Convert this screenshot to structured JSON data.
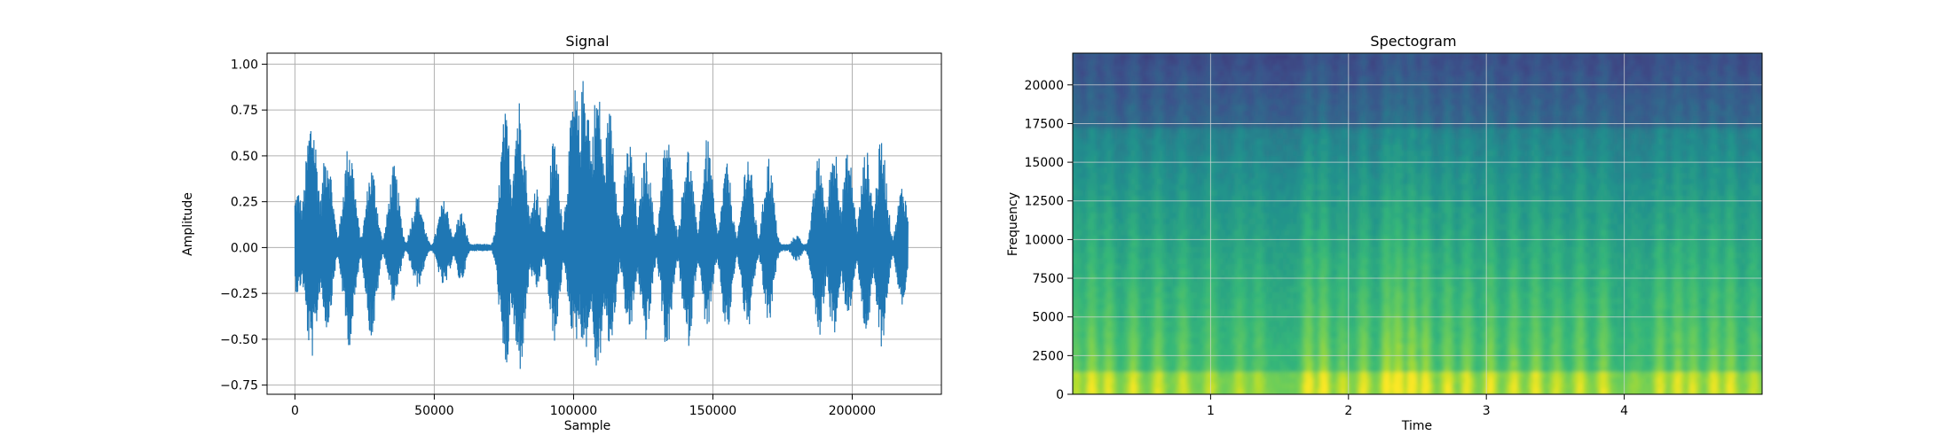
{
  "chart_data": [
    {
      "type": "line",
      "title": "Signal",
      "xlabel": "Sample",
      "ylabel": "Amplitude",
      "xlim": [
        -10000,
        232000
      ],
      "ylim": [
        -0.8,
        1.06
      ],
      "xticks": [
        0,
        50000,
        100000,
        150000,
        200000
      ],
      "xtick_labels": [
        "0",
        "50000",
        "100000",
        "150000",
        "200000"
      ],
      "yticks": [
        -0.75,
        -0.5,
        -0.25,
        0.0,
        0.25,
        0.5,
        0.75,
        1.0
      ],
      "ytick_labels": [
        "−0.75",
        "−0.50",
        "−0.25",
        "0.00",
        "0.25",
        "0.50",
        "0.75",
        "1.00"
      ],
      "grid": true,
      "color": "#1f77b4",
      "sample_count": 220000,
      "syllables": [
        {
          "center": 1000,
          "width": 2800,
          "top": 0.32,
          "bottom": -0.26
        },
        {
          "center": 6000,
          "width": 3500,
          "top": 0.74,
          "bottom": -0.61
        },
        {
          "center": 11500,
          "width": 3000,
          "top": 0.56,
          "bottom": -0.45
        },
        {
          "center": 19500,
          "width": 3200,
          "top": 0.59,
          "bottom": -0.54
        },
        {
          "center": 27500,
          "width": 3000,
          "top": 0.45,
          "bottom": -0.5
        },
        {
          "center": 35500,
          "width": 3000,
          "top": 0.45,
          "bottom": -0.31
        },
        {
          "center": 44000,
          "width": 3200,
          "top": 0.29,
          "bottom": -0.22
        },
        {
          "center": 53500,
          "width": 3200,
          "top": 0.26,
          "bottom": -0.22
        },
        {
          "center": 59500,
          "width": 2600,
          "top": 0.2,
          "bottom": -0.19
        },
        {
          "center": 75500,
          "width": 3000,
          "top": 0.74,
          "bottom": -0.7
        },
        {
          "center": 80500,
          "width": 3500,
          "top": 0.83,
          "bottom": -0.69
        },
        {
          "center": 86500,
          "width": 2600,
          "top": 0.35,
          "bottom": -0.25
        },
        {
          "center": 93000,
          "width": 3000,
          "top": 0.6,
          "bottom": -0.52
        },
        {
          "center": 100500,
          "width": 3600,
          "top": 0.88,
          "bottom": -0.53
        },
        {
          "center": 104000,
          "width": 3500,
          "top": 0.97,
          "bottom": -0.57
        },
        {
          "center": 108500,
          "width": 3200,
          "top": 0.9,
          "bottom": -0.7
        },
        {
          "center": 113000,
          "width": 3200,
          "top": 0.76,
          "bottom": -0.56
        },
        {
          "center": 120000,
          "width": 3000,
          "top": 0.59,
          "bottom": -0.48
        },
        {
          "center": 126000,
          "width": 3000,
          "top": 0.53,
          "bottom": -0.51
        },
        {
          "center": 133500,
          "width": 3000,
          "top": 0.64,
          "bottom": -0.57
        },
        {
          "center": 141000,
          "width": 3000,
          "top": 0.56,
          "bottom": -0.55
        },
        {
          "center": 148000,
          "width": 3000,
          "top": 0.6,
          "bottom": -0.45
        },
        {
          "center": 155000,
          "width": 2800,
          "top": 0.46,
          "bottom": -0.49
        },
        {
          "center": 162500,
          "width": 3000,
          "top": 0.53,
          "bottom": -0.46
        },
        {
          "center": 170000,
          "width": 2800,
          "top": 0.51,
          "bottom": -0.43
        },
        {
          "center": 180000,
          "width": 2600,
          "top": 0.07,
          "bottom": -0.08
        },
        {
          "center": 188000,
          "width": 3000,
          "top": 0.5,
          "bottom": -0.5
        },
        {
          "center": 193500,
          "width": 3000,
          "top": 0.58,
          "bottom": -0.49
        },
        {
          "center": 198500,
          "width": 3000,
          "top": 0.53,
          "bottom": -0.37
        },
        {
          "center": 205000,
          "width": 3000,
          "top": 0.54,
          "bottom": -0.47
        },
        {
          "center": 210500,
          "width": 3000,
          "top": 0.6,
          "bottom": -0.54
        },
        {
          "center": 218000,
          "width": 2800,
          "top": 0.35,
          "bottom": -0.33
        }
      ]
    },
    {
      "type": "heatmap",
      "title": "Spectogram",
      "xlabel": "Time",
      "ylabel": "Frequency",
      "xlim": [
        0,
        5.0
      ],
      "ylim": [
        0,
        22050
      ],
      "xticks": [
        1,
        2,
        3,
        4
      ],
      "xtick_labels": [
        "1",
        "2",
        "3",
        "4"
      ],
      "yticks": [
        0,
        2500,
        5000,
        7500,
        10000,
        12500,
        15000,
        17500,
        20000
      ],
      "ytick_labels": [
        "0",
        "2500",
        "5000",
        "7500",
        "10000",
        "12500",
        "15000",
        "17500",
        "20000"
      ],
      "grid": true,
      "colormap": "viridis",
      "syllable_times": [
        0.02,
        0.14,
        0.26,
        0.44,
        0.62,
        0.8,
        1.0,
        1.21,
        1.35,
        1.71,
        1.82,
        1.96,
        2.11,
        2.28,
        2.36,
        2.46,
        2.56,
        2.72,
        2.86,
        3.03,
        3.2,
        3.36,
        3.51,
        3.68,
        3.85,
        4.08,
        4.26,
        4.39,
        4.5,
        4.65,
        4.77,
        4.94
      ],
      "syllable_strength": [
        0.5,
        0.8,
        0.7,
        0.72,
        0.66,
        0.6,
        0.5,
        0.48,
        0.42,
        0.85,
        0.9,
        0.55,
        0.75,
        0.95,
        1.0,
        0.95,
        0.85,
        0.72,
        0.7,
        0.78,
        0.72,
        0.74,
        0.6,
        0.7,
        0.68,
        0.25,
        0.68,
        0.72,
        0.66,
        0.7,
        0.74,
        0.55
      ]
    }
  ]
}
